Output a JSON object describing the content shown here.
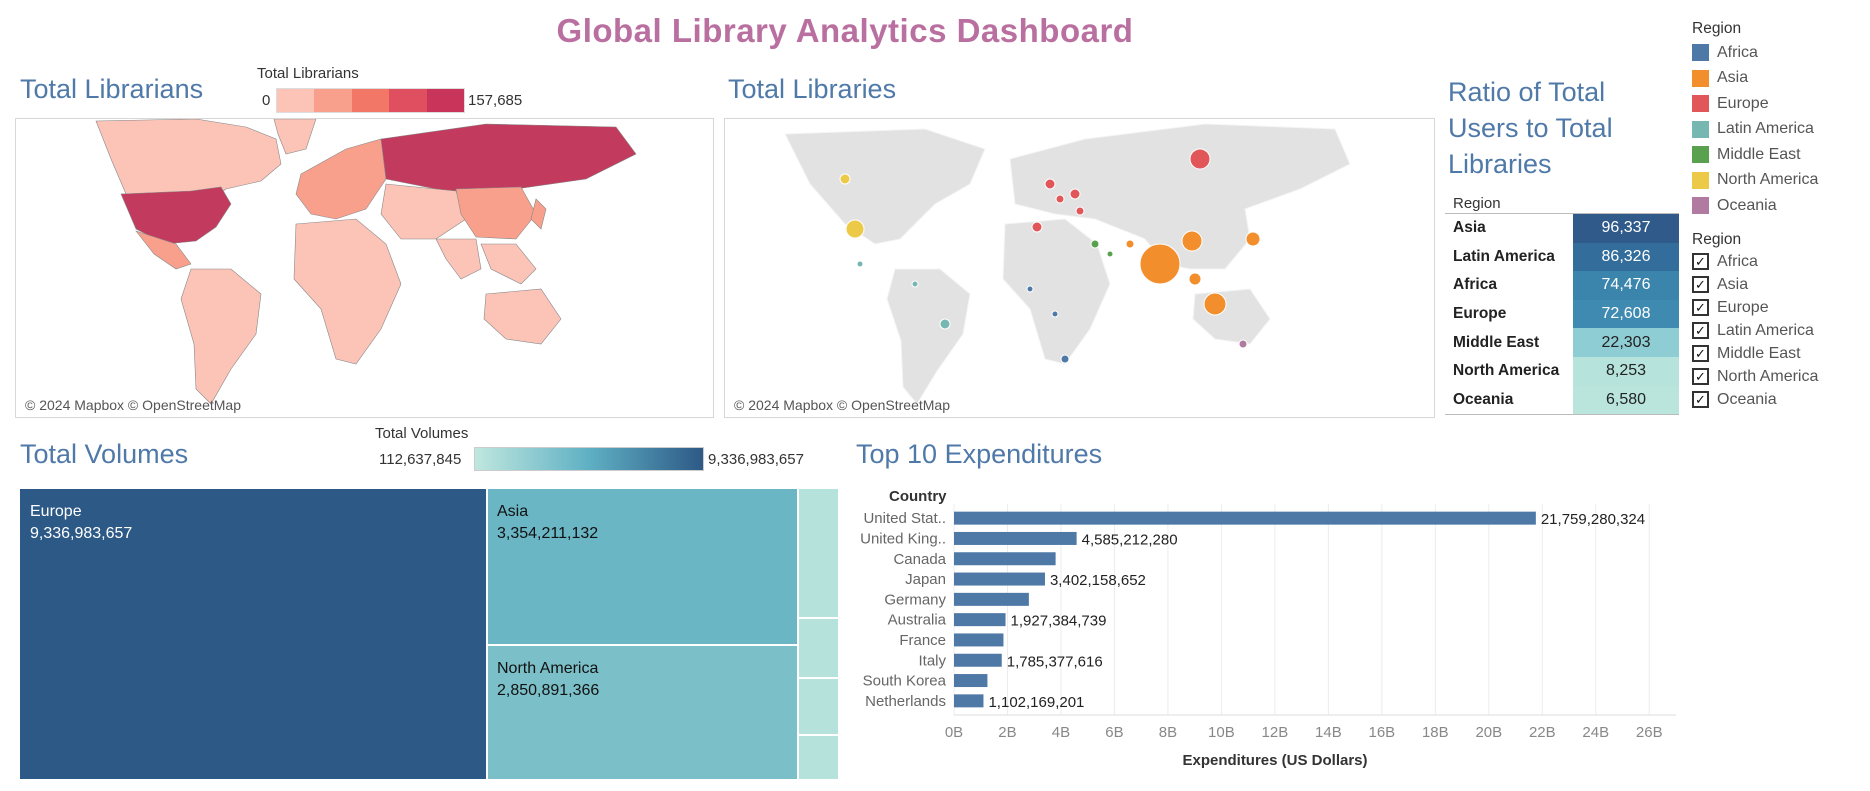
{
  "title": "Global Library Analytics Dashboard",
  "librarians": {
    "title": "Total Librarians",
    "legend_title": "Total Librarians",
    "legend_min": "0",
    "legend_max": "157,685",
    "legend_colors": [
      "#fcc3b7",
      "#f9a08d",
      "#f27766",
      "#e04f5f",
      "#c9345a"
    ],
    "credit": "© 2024 Mapbox © OpenStreetMap"
  },
  "libraries": {
    "title": "Total Libraries",
    "credit": "© 2024 Mapbox © OpenStreetMap"
  },
  "ratio": {
    "title_lines": [
      "Ratio of Total",
      "Users to Total",
      "Libraries"
    ],
    "header": "Region",
    "rows": [
      {
        "region": "Asia",
        "value": "96,337",
        "color": "#2f5a8a"
      },
      {
        "region": "Latin America",
        "value": "86,326",
        "color": "#326d9c"
      },
      {
        "region": "Africa",
        "value": "74,476",
        "color": "#3b84ac"
      },
      {
        "region": "Europe",
        "value": "72,608",
        "color": "#3f8ab0"
      },
      {
        "region": "Middle East",
        "value": "22,303",
        "color": "#8fcdd4"
      },
      {
        "region": "North America",
        "value": "8,253",
        "color": "#b6e3db"
      },
      {
        "region": "Oceania",
        "value": "6,580",
        "color": "#b9e5dc"
      }
    ]
  },
  "region_legend": {
    "title": "Region",
    "items": [
      {
        "label": "Africa",
        "color": "#4e79a7"
      },
      {
        "label": "Asia",
        "color": "#f28e2b"
      },
      {
        "label": "Europe",
        "color": "#e15759"
      },
      {
        "label": "Latin America",
        "color": "#76b7b2"
      },
      {
        "label": "Middle East",
        "color": "#59a14f"
      },
      {
        "label": "North America",
        "color": "#edc948"
      },
      {
        "label": "Oceania",
        "color": "#b07aa1"
      }
    ]
  },
  "region_filter": {
    "title": "Region",
    "items": [
      "Africa",
      "Asia",
      "Europe",
      "Latin America",
      "Middle East",
      "North America",
      "Oceania"
    ],
    "check": "✓"
  },
  "volumes": {
    "title": "Total Volumes",
    "legend_title": "Total Volumes",
    "legend_min": "112,637,845",
    "legend_max": "9,336,983,657",
    "tiles": [
      {
        "name": "Europe",
        "value": "9,336,983,657",
        "color": "#2d5986"
      },
      {
        "name": "Asia",
        "value": "3,354,211,132",
        "color": "#6ab6c5"
      },
      {
        "name": "North America",
        "value": "2,850,891,366",
        "color": "#7bbfc8"
      }
    ],
    "small_tile_color": "#b5e2da"
  },
  "chart_data": {
    "type": "bar",
    "title": "Top 10 Expenditures",
    "ylabel": "Country",
    "xlabel": "Expenditures  (US Dollars)",
    "categories": [
      "United Stat..",
      "United King..",
      "Canada",
      "Japan",
      "Germany",
      "Australia",
      "France",
      "Italy",
      "South Korea",
      "Netherlands"
    ],
    "values": [
      21759280324,
      4585212280,
      3800000000,
      3402158652,
      2800000000,
      1927384739,
      1850000000,
      1785377616,
      1250000000,
      1102169201
    ],
    "labels": [
      "21,759,280,324",
      "4,585,212,280",
      "",
      "3,402,158,652",
      "",
      "1,927,384,739",
      "",
      "1,785,377,616",
      "",
      "1,102,169,201"
    ],
    "xticks": [
      "0B",
      "2B",
      "4B",
      "6B",
      "8B",
      "10B",
      "12B",
      "14B",
      "16B",
      "18B",
      "20B",
      "22B",
      "24B",
      "26B"
    ],
    "xlim": [
      0,
      27000000000
    ],
    "bar_color": "#4e79a7"
  }
}
